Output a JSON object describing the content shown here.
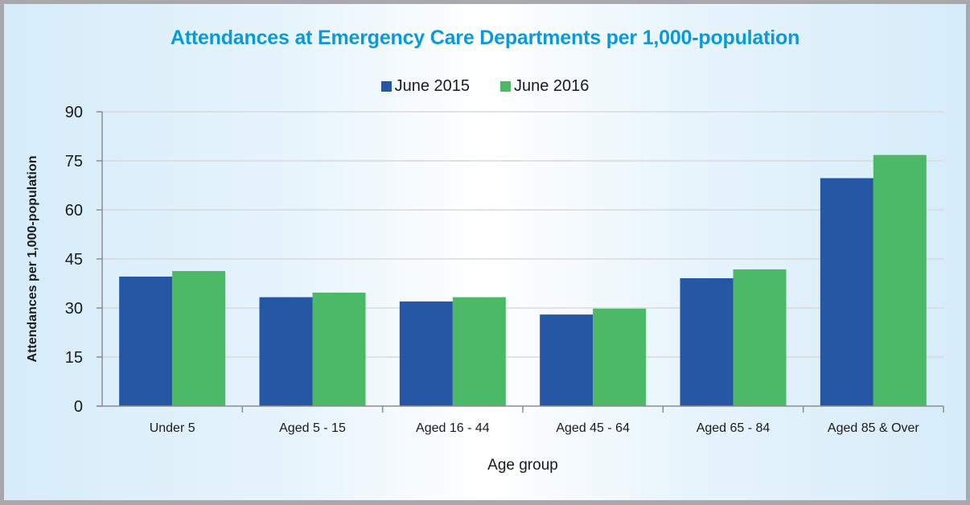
{
  "chart_data": {
    "type": "bar",
    "title": "Attendances at Emergency Care Departments per 1,000-population",
    "xlabel": "Age group",
    "ylabel": "Attendances per 1,000-population",
    "categories": [
      "Under 5",
      "Aged 5 - 15",
      "Aged 16 - 44",
      "Aged 45 - 64",
      "Aged 65 - 84",
      "Aged 85 & Over"
    ],
    "series": [
      {
        "name": "June 2015",
        "color": "#2557a5",
        "values": [
          39.6,
          33.3,
          32.0,
          28.0,
          39.1,
          69.7
        ]
      },
      {
        "name": "June 2016",
        "color": "#4cb966",
        "values": [
          41.3,
          34.7,
          33.3,
          29.8,
          41.8,
          76.8
        ]
      }
    ],
    "ylim": [
      0,
      90
    ],
    "yticks": [
      0,
      15,
      30,
      45,
      60,
      75,
      90
    ],
    "grid": true,
    "legend_position": "top-center"
  },
  "colors": {
    "title": "#0b9ad7",
    "gridline": "#d9d9d9",
    "axis": "#8c8c8c",
    "border": "#a8a9ad"
  }
}
